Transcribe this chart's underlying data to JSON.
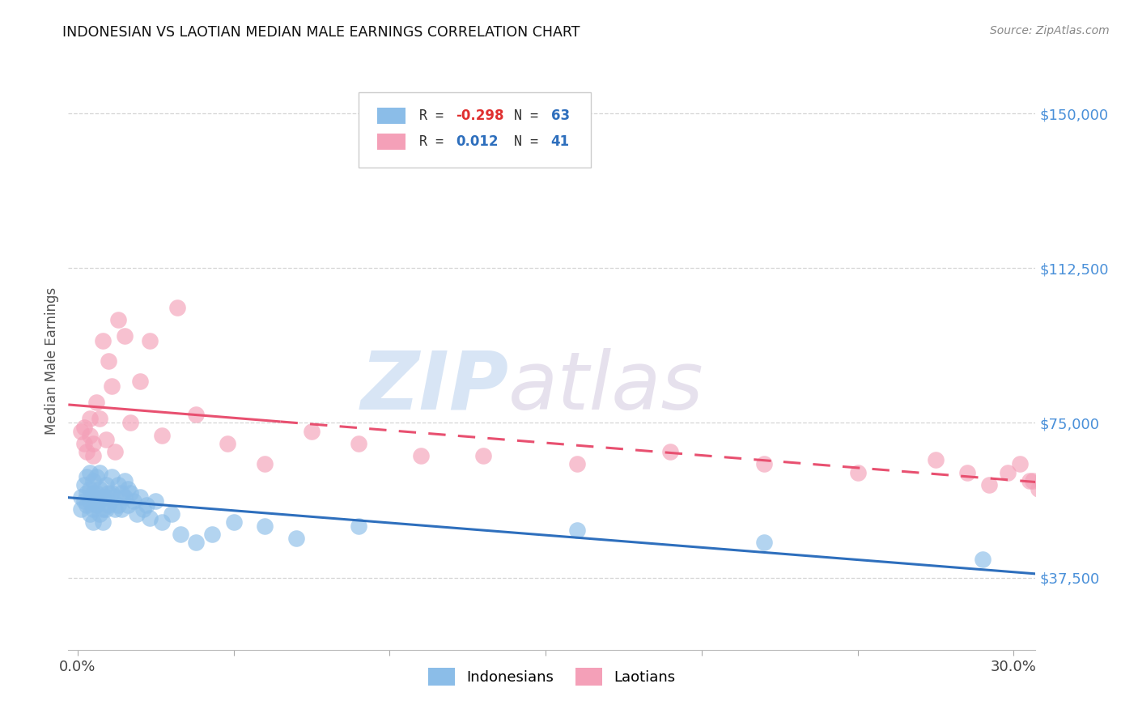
{
  "title": "INDONESIAN VS LAOTIAN MEDIAN MALE EARNINGS CORRELATION CHART",
  "source": "Source: ZipAtlas.com",
  "ylabel": "Median Male Earnings",
  "ytick_labels": [
    "$37,500",
    "$75,000",
    "$112,500",
    "$150,000"
  ],
  "ytick_values": [
    37500,
    75000,
    112500,
    150000
  ],
  "ymin": 20000,
  "ymax": 160000,
  "xmin": -0.003,
  "xmax": 0.307,
  "indonesian_color": "#8BBDE8",
  "laotian_color": "#F4A0B8",
  "indonesian_line_color": "#2E6FBD",
  "laotian_line_color": "#E85070",
  "background_color": "#FFFFFF",
  "grid_color": "#CCCCCC",
  "indonesian_x": [
    0.001,
    0.001,
    0.002,
    0.002,
    0.003,
    0.003,
    0.003,
    0.004,
    0.004,
    0.004,
    0.004,
    0.005,
    0.005,
    0.005,
    0.005,
    0.005,
    0.006,
    0.006,
    0.006,
    0.007,
    0.007,
    0.007,
    0.007,
    0.008,
    0.008,
    0.008,
    0.009,
    0.009,
    0.009,
    0.01,
    0.01,
    0.011,
    0.011,
    0.012,
    0.012,
    0.013,
    0.013,
    0.014,
    0.014,
    0.015,
    0.015,
    0.016,
    0.016,
    0.017,
    0.018,
    0.019,
    0.02,
    0.021,
    0.022,
    0.023,
    0.025,
    0.027,
    0.03,
    0.033,
    0.038,
    0.043,
    0.05,
    0.06,
    0.07,
    0.09,
    0.16,
    0.22,
    0.29
  ],
  "indonesian_y": [
    57000,
    54000,
    60000,
    56000,
    62000,
    58000,
    55000,
    63000,
    59000,
    56000,
    53000,
    61000,
    57000,
    54000,
    51000,
    58000,
    62000,
    58000,
    55000,
    63000,
    59000,
    56000,
    53000,
    57000,
    54000,
    51000,
    60000,
    57000,
    54000,
    58000,
    55000,
    62000,
    58000,
    57000,
    54000,
    60000,
    55000,
    58000,
    54000,
    61000,
    57000,
    59000,
    55000,
    58000,
    56000,
    53000,
    57000,
    54000,
    55000,
    52000,
    56000,
    51000,
    53000,
    48000,
    46000,
    48000,
    51000,
    50000,
    47000,
    50000,
    49000,
    46000,
    42000
  ],
  "laotian_x": [
    0.001,
    0.002,
    0.002,
    0.003,
    0.004,
    0.004,
    0.005,
    0.005,
    0.006,
    0.007,
    0.008,
    0.009,
    0.01,
    0.011,
    0.012,
    0.013,
    0.015,
    0.017,
    0.02,
    0.023,
    0.027,
    0.032,
    0.038,
    0.048,
    0.06,
    0.075,
    0.09,
    0.11,
    0.13,
    0.16,
    0.19,
    0.22,
    0.25,
    0.275,
    0.285,
    0.292,
    0.298,
    0.302,
    0.305,
    0.308,
    0.306
  ],
  "laotian_y": [
    73000,
    74000,
    70000,
    68000,
    76000,
    72000,
    70000,
    67000,
    80000,
    76000,
    95000,
    71000,
    90000,
    84000,
    68000,
    100000,
    96000,
    75000,
    85000,
    95000,
    72000,
    103000,
    77000,
    70000,
    65000,
    73000,
    70000,
    67000,
    67000,
    65000,
    68000,
    65000,
    63000,
    66000,
    63000,
    60000,
    63000,
    65000,
    61000,
    59000,
    61000
  ]
}
